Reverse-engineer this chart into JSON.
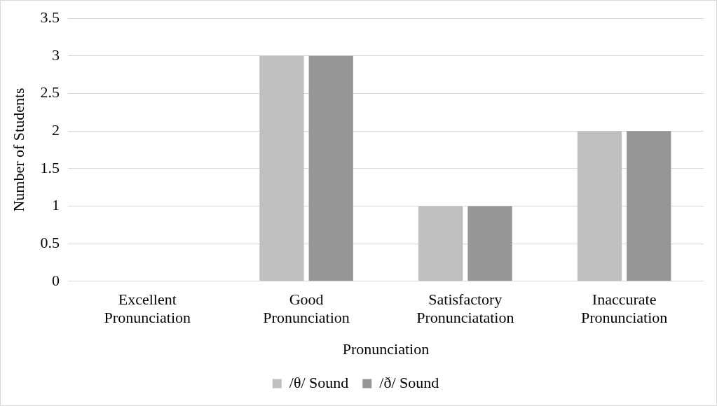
{
  "chart_data": {
    "type": "bar",
    "xlabel": "Pronunciation",
    "ylabel": "Number of Students",
    "categories": [
      "Excellent Pronunciation",
      "Good Pronunciation",
      "Satisfactory Pronunciatation",
      "Inaccurate Pronunciation"
    ],
    "series": [
      {
        "name": "/θ/ Sound",
        "color": "#bfbfbf",
        "values": [
          0,
          3,
          1,
          2
        ]
      },
      {
        "name": "/ð/ Sound",
        "color": "#969696",
        "values": [
          0,
          3,
          1,
          2
        ]
      }
    ],
    "ylim": [
      0,
      3.5
    ],
    "yticks": [
      0,
      0.5,
      1,
      1.5,
      2,
      2.5,
      3,
      3.5
    ],
    "grid": "y",
    "legend": "bottom"
  }
}
